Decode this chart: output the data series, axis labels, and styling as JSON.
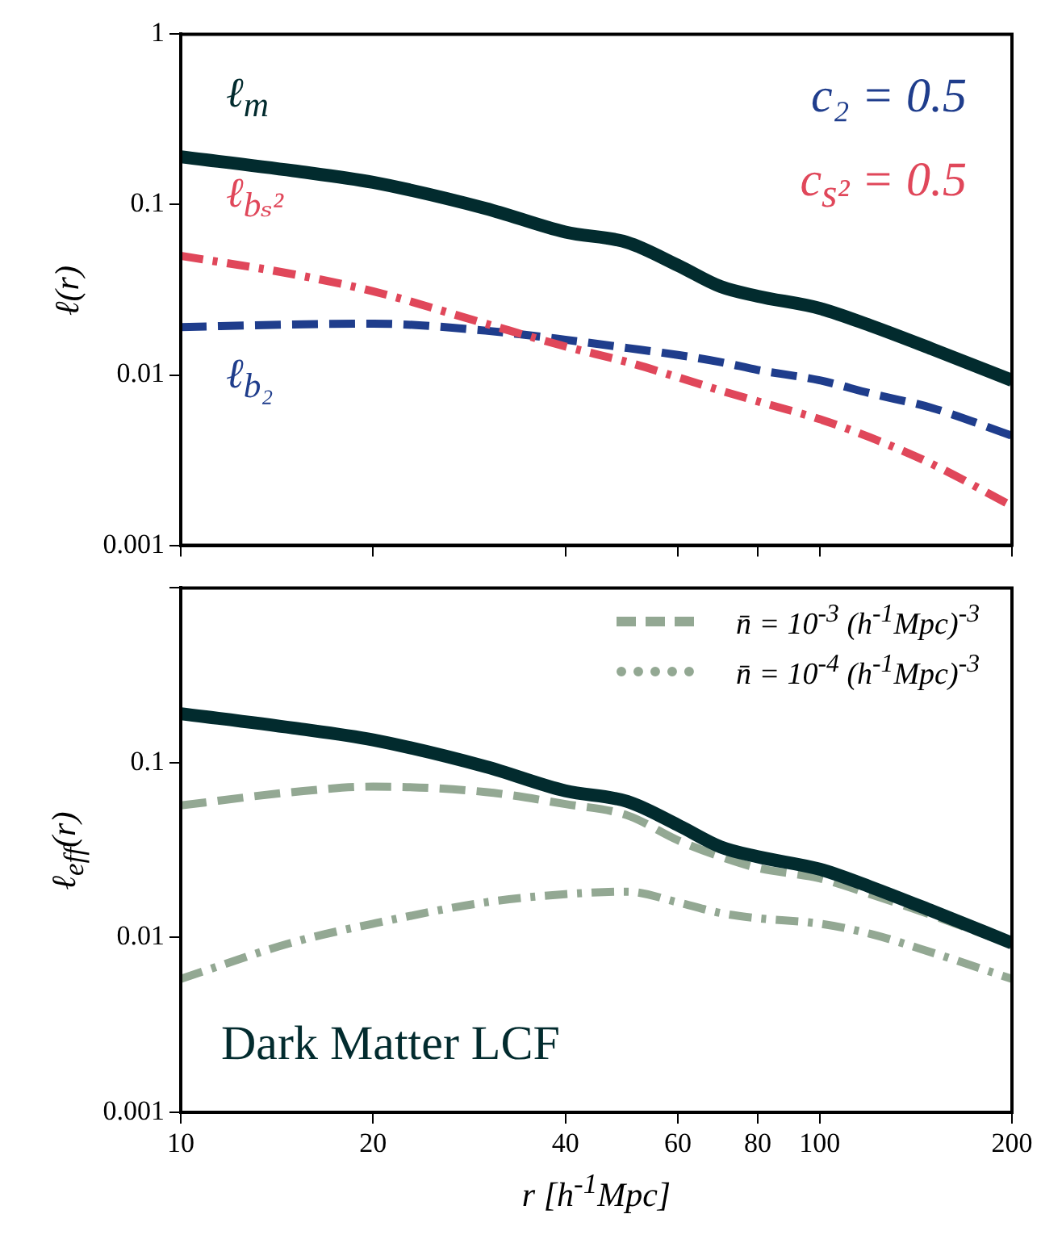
{
  "chart_data": [
    {
      "type": "line",
      "ylabel": "ℓ(r)",
      "log": "xy",
      "xlim": [
        10,
        200
      ],
      "ylim": [
        0.001,
        1
      ],
      "xticks": [
        10,
        20,
        40,
        60,
        80,
        100,
        200
      ],
      "yticks": [
        0.001,
        0.01,
        0.1,
        1
      ],
      "tick_labels": "y",
      "x": [
        10,
        15,
        20,
        30,
        40,
        50,
        60,
        70,
        80,
        100,
        120,
        150,
        200
      ],
      "annotations": [
        "c₂ = 0.5",
        "c$_{s²}$ = 0.5"
      ],
      "series": [
        {
          "name": "ℓ$_{m}$",
          "color": "#022b2e",
          "line_style": "solid",
          "values": [
            0.191,
            0.158,
            0.135,
            0.095,
            0.069,
            0.06,
            0.044,
            0.033,
            0.029,
            0.0246,
            0.0195,
            0.0142,
            0.0093
          ]
        },
        {
          "name": "ℓ$_{bₛ²}$",
          "color": "#e0475a",
          "line_style": "dotted",
          "values": [
            0.05,
            0.039,
            0.031,
            0.02,
            0.0147,
            0.0119,
            0.0097,
            0.0081,
            0.007,
            0.0055,
            0.0043,
            0.003,
            0.0017
          ]
        },
        {
          "name": "ℓ$_{b₂}$",
          "color": "#1f3d8c",
          "line_style": "dashed",
          "values": [
            0.0191,
            0.0198,
            0.02,
            0.0182,
            0.0161,
            0.0144,
            0.0131,
            0.0119,
            0.0107,
            0.0093,
            0.0078,
            0.0064,
            0.0044
          ]
        }
      ]
    },
    {
      "type": "line",
      "xlabel": "r [h$^{-1}$Mpc]",
      "ylabel": "ℓ$_{eff}$(r)",
      "log": "xy",
      "xlim": [
        10,
        200
      ],
      "ylim": [
        0.001,
        1
      ],
      "xticks": [
        10,
        20,
        40,
        60,
        80,
        100,
        200
      ],
      "yticks": [
        0.001,
        0.01,
        0.1,
        {
          "value": 1,
          "label": null
        }
      ],
      "legend": "top right",
      "x": [
        10,
        15,
        20,
        30,
        40,
        50,
        60,
        70,
        80,
        100,
        120,
        150,
        200
      ],
      "annotations": [
        "Dark Matter LCF"
      ],
      "series": [
        {
          "color": "#022b2e",
          "line_style": "solid",
          "values": [
            0.191,
            0.158,
            0.135,
            0.095,
            0.069,
            0.06,
            0.044,
            0.033,
            0.029,
            0.0246,
            0.0195,
            0.0142,
            0.0093
          ]
        },
        {
          "name": "n̄ = 10$^{-3}$ (h$^{-1}$Mpc)$^{-3}$",
          "color": "#93a893",
          "line_style": "dashed",
          "values": [
            0.057,
            0.068,
            0.073,
            0.068,
            0.058,
            0.05,
            0.036,
            0.029,
            0.025,
            0.0218,
            0.0177,
            0.0134,
            0.0091
          ]
        },
        {
          "name": "n̄ = 10$^{-4}$ (h$^{-1}$Mpc)$^{-3}$",
          "color": "#93a893",
          "line_style": "dotted",
          "values": [
            0.0058,
            0.0094,
            0.012,
            0.0159,
            0.0177,
            0.0183,
            0.0159,
            0.0138,
            0.0129,
            0.012,
            0.0105,
            0.0082,
            0.0058
          ]
        }
      ]
    }
  ]
}
